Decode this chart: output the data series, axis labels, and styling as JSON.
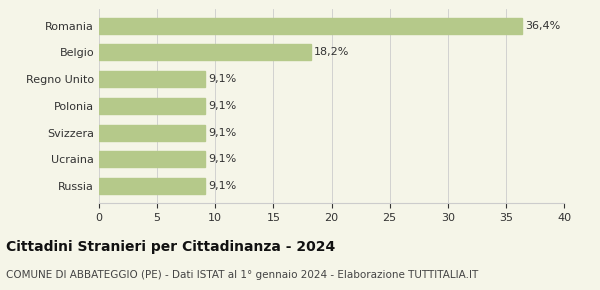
{
  "categories_top_to_bottom": [
    "Romania",
    "Belgio",
    "Regno Unito",
    "Polonia",
    "Svizzera",
    "Ucraina",
    "Russia"
  ],
  "values_top_to_bottom": [
    36.4,
    18.2,
    9.1,
    9.1,
    9.1,
    9.1,
    9.1
  ],
  "labels_top_to_bottom": [
    "36,4%",
    "18,2%",
    "9,1%",
    "9,1%",
    "9,1%",
    "9,1%",
    "9,1%"
  ],
  "bar_color": "#b5c98a",
  "background_color": "#f5f5e8",
  "title": "Cittadini Stranieri per Cittadinanza - 2024",
  "subtitle": "COMUNE DI ABBATEGGIO (PE) - Dati ISTAT al 1° gennaio 2024 - Elaborazione TUTTITALIA.IT",
  "xlim": [
    0,
    40
  ],
  "xticks": [
    0,
    5,
    10,
    15,
    20,
    25,
    30,
    35,
    40
  ],
  "title_fontsize": 10,
  "subtitle_fontsize": 7.5,
  "label_fontsize": 8,
  "tick_fontsize": 8,
  "ytick_fontsize": 8
}
